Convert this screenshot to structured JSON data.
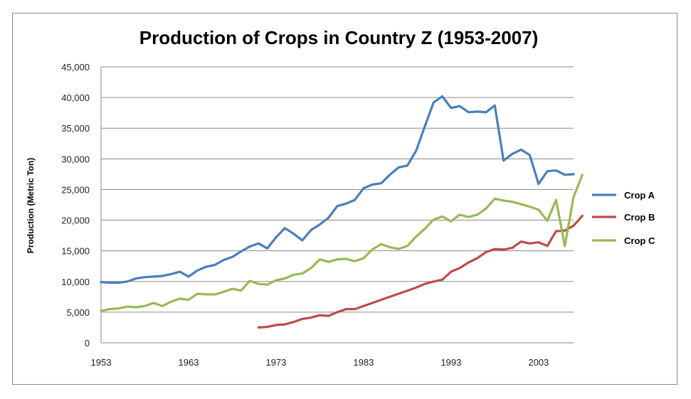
{
  "chart_data": {
    "type": "line",
    "title": "Production of Crops in Country Z (1953-2007)",
    "xlabel": "",
    "ylabel": "Production (Metric Ton)",
    "xlim": [
      1953,
      2007
    ],
    "ylim": [
      0,
      45000
    ],
    "x_ticks": [
      1953,
      1963,
      1973,
      1983,
      1993,
      2003
    ],
    "y_ticks": [
      0,
      5000,
      10000,
      15000,
      20000,
      25000,
      30000,
      35000,
      40000,
      45000
    ],
    "y_tick_labels": [
      "0",
      "5,000",
      "10,000",
      "15,000",
      "20,000",
      "25,000",
      "30,000",
      "35,000",
      "40,000",
      "45,000"
    ],
    "grid": true,
    "legend_position": "right",
    "series": [
      {
        "name": "Crop A",
        "color": "#4a7ebb",
        "points": [
          [
            1953,
            9900
          ],
          [
            1954,
            9800
          ],
          [
            1955,
            9800
          ],
          [
            1956,
            10000
          ],
          [
            1957,
            10500
          ],
          [
            1958,
            10700
          ],
          [
            1959,
            10800
          ],
          [
            1960,
            10900
          ],
          [
            1961,
            11200
          ],
          [
            1962,
            11600
          ],
          [
            1963,
            10800
          ],
          [
            1964,
            11800
          ],
          [
            1965,
            12400
          ],
          [
            1966,
            12700
          ],
          [
            1967,
            13500
          ],
          [
            1968,
            14000
          ],
          [
            1969,
            14900
          ],
          [
            1970,
            15700
          ],
          [
            1971,
            16200
          ],
          [
            1972,
            15400
          ],
          [
            1973,
            17200
          ],
          [
            1974,
            18700
          ],
          [
            1975,
            17800
          ],
          [
            1976,
            16700
          ],
          [
            1977,
            18400
          ],
          [
            1978,
            19300
          ],
          [
            1979,
            20400
          ],
          [
            1980,
            22300
          ],
          [
            1981,
            22700
          ],
          [
            1982,
            23300
          ],
          [
            1983,
            25200
          ],
          [
            1984,
            25800
          ],
          [
            1985,
            26000
          ],
          [
            1986,
            27400
          ],
          [
            1987,
            28600
          ],
          [
            1988,
            28900
          ],
          [
            1989,
            31300
          ],
          [
            1990,
            35300
          ],
          [
            1991,
            39200
          ],
          [
            1992,
            40200
          ],
          [
            1993,
            38300
          ],
          [
            1994,
            38600
          ],
          [
            1995,
            37600
          ],
          [
            1996,
            37700
          ],
          [
            1997,
            37600
          ],
          [
            1998,
            38700
          ],
          [
            1999,
            29700
          ],
          [
            2000,
            30800
          ],
          [
            2001,
            31500
          ],
          [
            2002,
            30600
          ],
          [
            2003,
            25900
          ],
          [
            2004,
            28000
          ],
          [
            2005,
            28100
          ],
          [
            2006,
            27400
          ],
          [
            2007,
            27500
          ]
        ]
      },
      {
        "name": "Crop B",
        "color": "#be4b48",
        "points": [
          [
            1971,
            2500
          ],
          [
            1972,
            2600
          ],
          [
            1973,
            2900
          ],
          [
            1974,
            3000
          ],
          [
            1975,
            3400
          ],
          [
            1976,
            3900
          ],
          [
            1977,
            4100
          ],
          [
            1978,
            4500
          ],
          [
            1979,
            4400
          ],
          [
            1980,
            5000
          ],
          [
            1981,
            5500
          ],
          [
            1982,
            5500
          ],
          [
            1983,
            6000
          ],
          [
            1984,
            6500
          ],
          [
            1985,
            7000
          ],
          [
            1986,
            7500
          ],
          [
            1987,
            8000
          ],
          [
            1988,
            8500
          ],
          [
            1989,
            9000
          ],
          [
            1990,
            9600
          ],
          [
            1991,
            10000
          ],
          [
            1992,
            10300
          ],
          [
            1993,
            11600
          ],
          [
            1994,
            12200
          ],
          [
            1995,
            13100
          ],
          [
            1996,
            13800
          ],
          [
            1997,
            14800
          ],
          [
            1998,
            15300
          ],
          [
            1999,
            15200
          ],
          [
            2000,
            15500
          ],
          [
            2001,
            16500
          ],
          [
            2002,
            16200
          ],
          [
            2003,
            16400
          ],
          [
            2004,
            15800
          ],
          [
            2005,
            18200
          ],
          [
            2006,
            18300
          ],
          [
            2007,
            19100
          ],
          [
            2008,
            20700
          ]
        ]
      },
      {
        "name": "Crop C",
        "color": "#98b954",
        "points": [
          [
            1953,
            5200
          ],
          [
            1954,
            5500
          ],
          [
            1955,
            5600
          ],
          [
            1956,
            5900
          ],
          [
            1957,
            5800
          ],
          [
            1958,
            6000
          ],
          [
            1959,
            6500
          ],
          [
            1960,
            6000
          ],
          [
            1961,
            6700
          ],
          [
            1962,
            7200
          ],
          [
            1963,
            7000
          ],
          [
            1964,
            8000
          ],
          [
            1965,
            7900
          ],
          [
            1966,
            7900
          ],
          [
            1967,
            8300
          ],
          [
            1968,
            8800
          ],
          [
            1969,
            8500
          ],
          [
            1970,
            10100
          ],
          [
            1971,
            9600
          ],
          [
            1972,
            9500
          ],
          [
            1973,
            10200
          ],
          [
            1974,
            10500
          ],
          [
            1975,
            11100
          ],
          [
            1976,
            11300
          ],
          [
            1977,
            12200
          ],
          [
            1978,
            13600
          ],
          [
            1979,
            13200
          ],
          [
            1980,
            13600
          ],
          [
            1981,
            13700
          ],
          [
            1982,
            13300
          ],
          [
            1983,
            13800
          ],
          [
            1984,
            15200
          ],
          [
            1985,
            16100
          ],
          [
            1986,
            15600
          ],
          [
            1987,
            15300
          ],
          [
            1988,
            15800
          ],
          [
            1989,
            17300
          ],
          [
            1990,
            18600
          ],
          [
            1991,
            20100
          ],
          [
            1992,
            20600
          ],
          [
            1993,
            19800
          ],
          [
            1994,
            20900
          ],
          [
            1995,
            20500
          ],
          [
            1996,
            20900
          ],
          [
            1997,
            21900
          ],
          [
            1998,
            23500
          ],
          [
            1999,
            23200
          ],
          [
            2000,
            23000
          ],
          [
            2001,
            22600
          ],
          [
            2002,
            22200
          ],
          [
            2003,
            21700
          ],
          [
            2004,
            19900
          ],
          [
            2005,
            23300
          ],
          [
            2006,
            15800
          ],
          [
            2007,
            23800
          ],
          [
            2008,
            27400
          ]
        ]
      }
    ]
  }
}
